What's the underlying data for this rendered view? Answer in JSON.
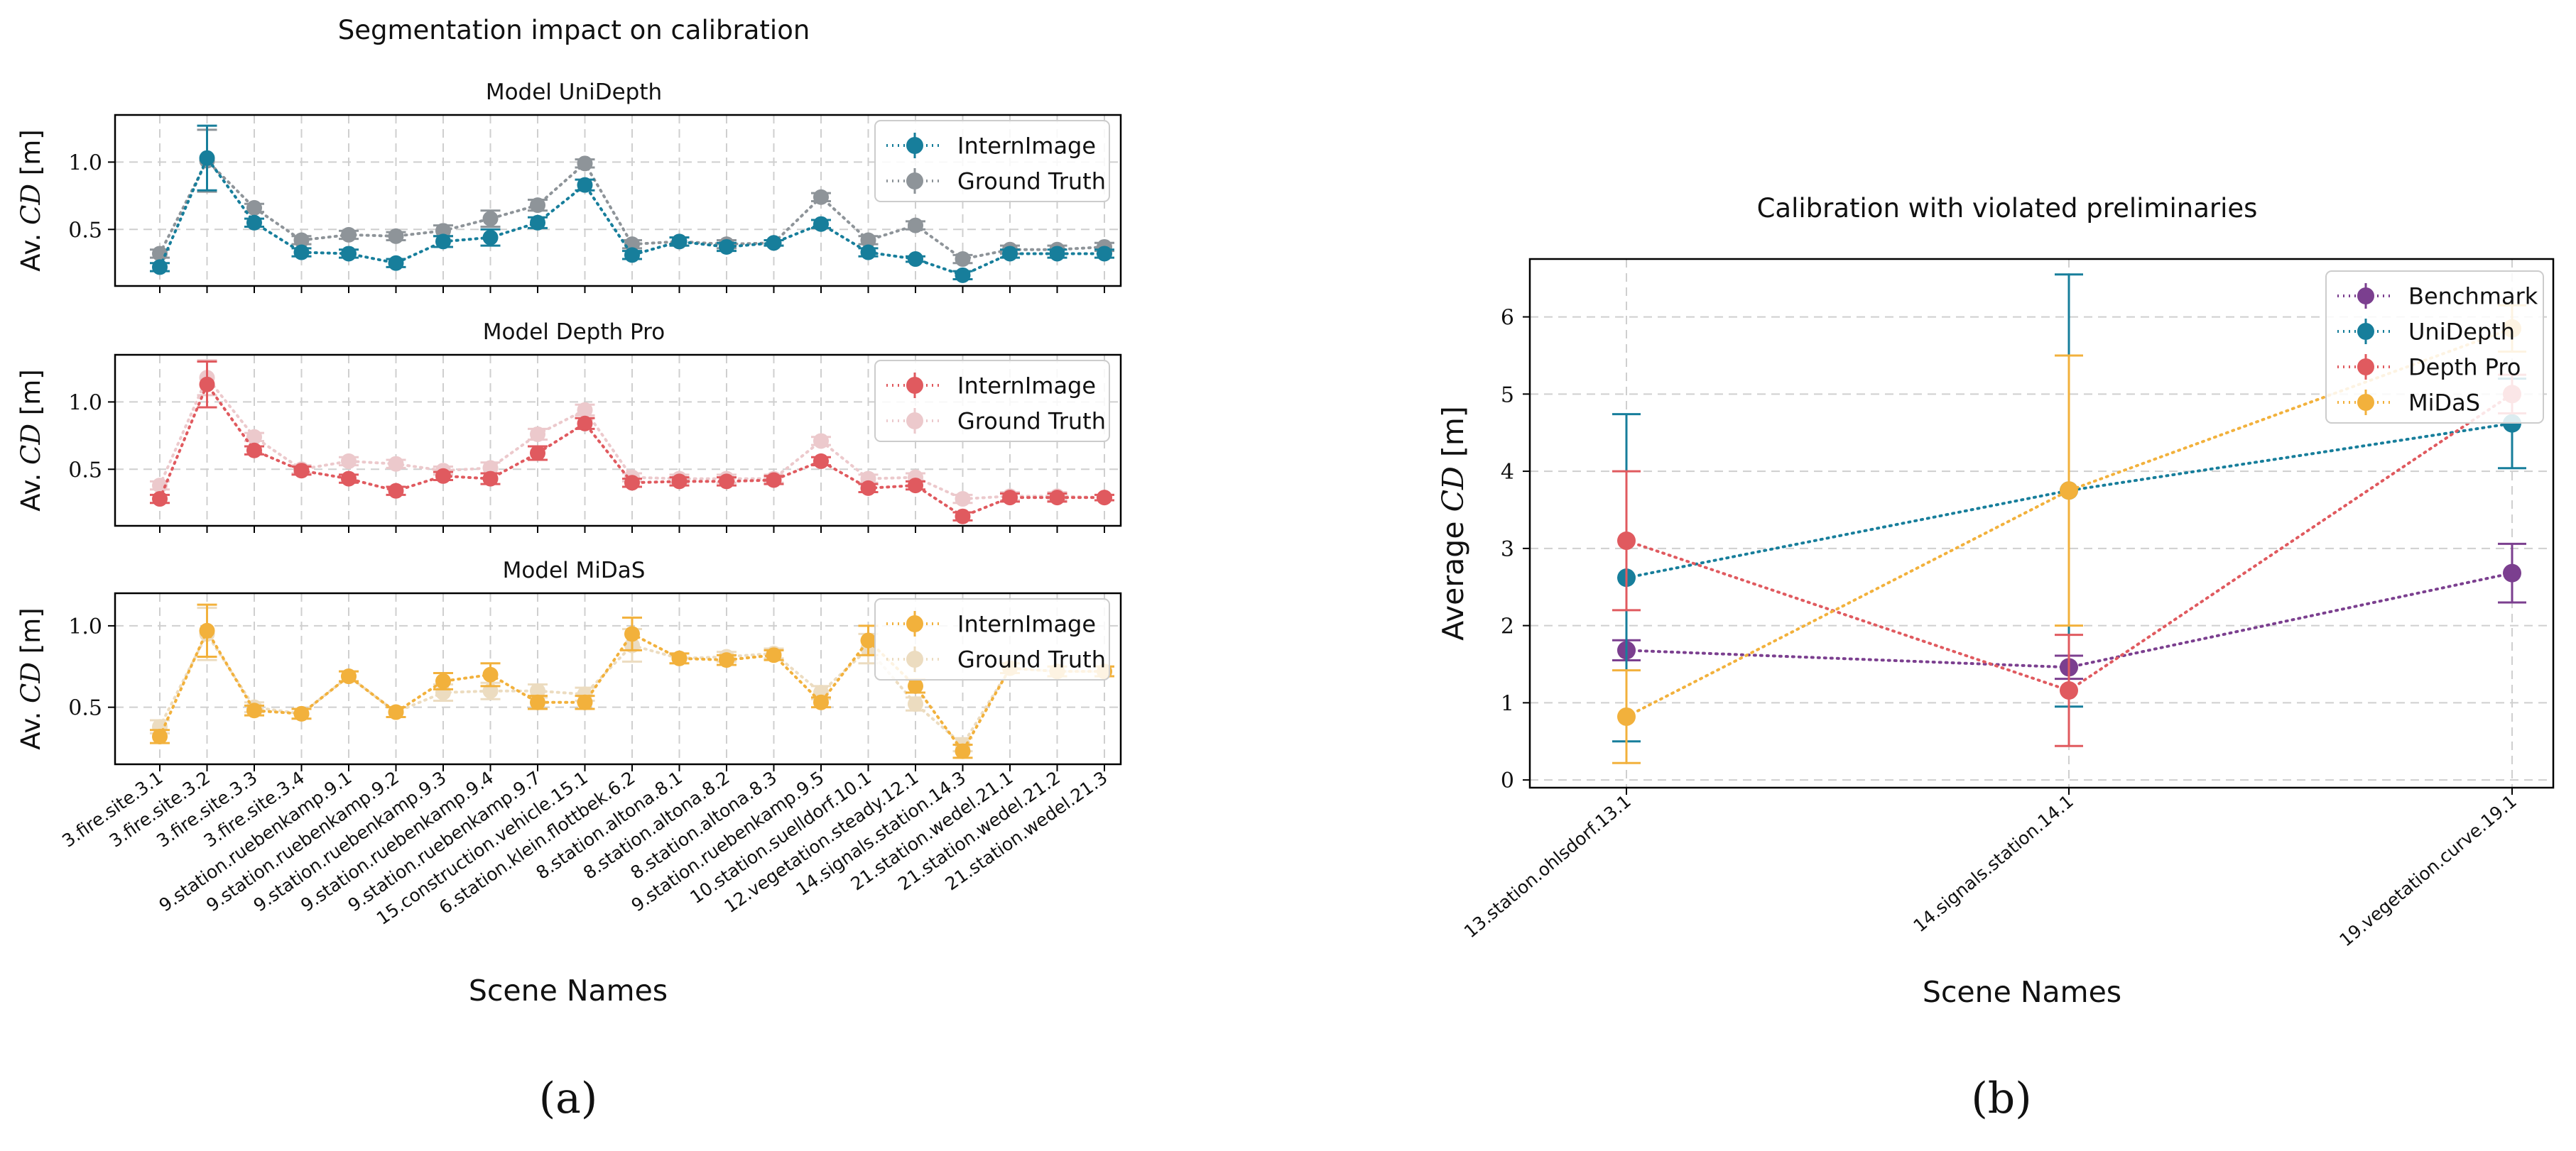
{
  "chart_data": [
    {
      "id": "a",
      "type": "line",
      "title": "Segmentation impact on calibration",
      "caption": "(a)",
      "xlabel": "Scene Names",
      "categories": [
        "3.fire.site.3.1",
        "3.fire.site.3.2",
        "3.fire.site.3.3",
        "3.fire.site.3.4",
        "9.station.ruebenkamp.9.1",
        "9.station.ruebenkamp.9.2",
        "9.station.ruebenkamp.9.3",
        "9.station.ruebenkamp.9.4",
        "9.station.ruebenkamp.9.7",
        "15.construction.vehicle.15.1",
        "6.station.klein.flottbek.6.2",
        "8.station.altona.8.1",
        "8.station.altona.8.2",
        "8.station.altona.8.3",
        "9.station.ruebenkamp.9.5",
        "10.station.suelldorf.10.1",
        "12.vegetation.steady.12.1",
        "14.signals.station.14.3",
        "21.station.wedel.21.1",
        "21.station.wedel.21.2",
        "21.station.wedel.21.3"
      ],
      "subplots": [
        {
          "title": "Model UniDepth",
          "ylabel_prefix": "Av. ",
          "ylabel_math": "CD",
          "ylabel_suffix": " [m]",
          "yticks": [
            "0.5",
            "1.0"
          ],
          "ylim": [
            0.08,
            1.35
          ],
          "series": [
            {
              "name": "InternImage",
              "color": "#177e9b",
              "values": [
                0.22,
                1.03,
                0.55,
                0.33,
                0.32,
                0.25,
                0.41,
                0.44,
                0.55,
                0.83,
                0.31,
                0.41,
                0.37,
                0.4,
                0.54,
                0.33,
                0.28,
                0.16,
                0.32,
                0.32,
                0.32
              ],
              "errors": [
                0.03,
                0.24,
                0.03,
                0.03,
                0.03,
                0.03,
                0.04,
                0.06,
                0.04,
                0.04,
                0.03,
                0.03,
                0.03,
                0.02,
                0.03,
                0.03,
                0.02,
                0.03,
                0.03,
                0.03,
                0.03
              ]
            },
            {
              "name": "Ground Truth",
              "color": "#8e9499",
              "values": [
                0.32,
                1.01,
                0.66,
                0.42,
                0.46,
                0.45,
                0.49,
                0.58,
                0.68,
                0.99,
                0.39,
                0.41,
                0.39,
                0.4,
                0.74,
                0.42,
                0.53,
                0.28,
                0.35,
                0.35,
                0.37
              ],
              "errors": [
                0.03,
                0.23,
                0.03,
                0.03,
                0.03,
                0.03,
                0.04,
                0.06,
                0.04,
                0.03,
                0.03,
                0.03,
                0.03,
                0.02,
                0.03,
                0.03,
                0.03,
                0.03,
                0.03,
                0.03,
                0.03
              ]
            }
          ]
        },
        {
          "title": "Model Depth Pro",
          "ylabel_prefix": "Av. ",
          "ylabel_math": "CD",
          "ylabel_suffix": " [m]",
          "yticks": [
            "0.5",
            "1.0"
          ],
          "ylim": [
            0.08,
            1.35
          ],
          "series": [
            {
              "name": "InternImage",
              "color": "#e05a5f",
              "values": [
                0.28,
                1.13,
                0.64,
                0.49,
                0.43,
                0.34,
                0.45,
                0.43,
                0.62,
                0.84,
                0.4,
                0.41,
                0.41,
                0.42,
                0.56,
                0.36,
                0.38,
                0.15,
                0.29,
                0.29,
                0.29
              ],
              "errors": [
                0.03,
                0.17,
                0.03,
                0.03,
                0.03,
                0.03,
                0.03,
                0.04,
                0.05,
                0.04,
                0.03,
                0.03,
                0.03,
                0.03,
                0.03,
                0.03,
                0.03,
                0.03,
                0.03,
                0.03,
                0.02
              ]
            },
            {
              "name": "Ground Truth",
              "color": "#ecc9cc",
              "values": [
                0.38,
                1.18,
                0.74,
                0.5,
                0.56,
                0.54,
                0.49,
                0.51,
                0.76,
                0.94,
                0.44,
                0.43,
                0.43,
                0.43,
                0.71,
                0.43,
                0.44,
                0.28,
                0.3,
                0.3,
                0.29
              ],
              "errors": [
                0.03,
                0.13,
                0.03,
                0.03,
                0.03,
                0.03,
                0.03,
                0.04,
                0.04,
                0.04,
                0.03,
                0.03,
                0.03,
                0.03,
                0.03,
                0.03,
                0.03,
                0.03,
                0.03,
                0.03,
                0.02
              ]
            }
          ]
        },
        {
          "title": "Model MiDaS",
          "ylabel_prefix": "Av. ",
          "ylabel_math": "CD",
          "ylabel_suffix": " [m]",
          "yticks": [
            "0.5",
            "1.0"
          ],
          "ylim": [
            0.15,
            1.2
          ],
          "series": [
            {
              "name": "InternImage",
              "color": "#f2b13c",
              "values": [
                0.32,
                0.97,
                0.48,
                0.46,
                0.69,
                0.47,
                0.66,
                0.7,
                0.53,
                0.53,
                0.95,
                0.8,
                0.79,
                0.82,
                0.53,
                0.91,
                0.63,
                0.23,
                0.74,
                0.72,
                0.72
              ],
              "errors": [
                0.04,
                0.16,
                0.03,
                0.03,
                0.03,
                0.03,
                0.05,
                0.07,
                0.04,
                0.04,
                0.1,
                0.03,
                0.03,
                0.03,
                0.03,
                0.09,
                0.04,
                0.04,
                0.03,
                0.03,
                0.03
              ]
            },
            {
              "name": "Ground Truth",
              "color": "#ecdcc0",
              "values": [
                0.38,
                0.95,
                0.5,
                0.46,
                0.69,
                0.47,
                0.59,
                0.6,
                0.6,
                0.58,
                0.88,
                0.8,
                0.81,
                0.83,
                0.59,
                0.86,
                0.52,
                0.27,
                0.74,
                0.72,
                0.72
              ],
              "errors": [
                0.04,
                0.16,
                0.03,
                0.03,
                0.03,
                0.03,
                0.05,
                0.05,
                0.04,
                0.04,
                0.1,
                0.03,
                0.03,
                0.03,
                0.04,
                0.09,
                0.04,
                0.04,
                0.03,
                0.03,
                0.03
              ]
            }
          ]
        }
      ]
    },
    {
      "id": "b",
      "type": "line",
      "title": "Calibration with violated preliminaries",
      "caption": "(b)",
      "xlabel": "Scene Names",
      "ylabel_prefix": "Average ",
      "ylabel_math": "CD",
      "ylabel_suffix": " [m]",
      "categories": [
        "13.station.ohlsdorf.13.1",
        "14.signals.station.14.1",
        "19.vegetation.curve.19.1"
      ],
      "ylim": [
        -0.1,
        6.75
      ],
      "yticks": [
        0,
        1,
        2,
        3,
        4,
        5,
        6
      ],
      "legend_position": "top-right",
      "series": [
        {
          "name": "Benchmark",
          "color": "#7b3f8f",
          "values": [
            1.68,
            1.46,
            2.68
          ],
          "errors": [
            0.13,
            0.15,
            0.38
          ]
        },
        {
          "name": "UniDepth",
          "color": "#177e9b",
          "values": [
            2.62,
            3.75,
            4.62
          ],
          "errors": [
            2.12,
            2.8,
            0.58
          ]
        },
        {
          "name": "Depth Pro",
          "color": "#e05a5f",
          "values": [
            3.1,
            1.16,
            5.0
          ],
          "errors": [
            0.9,
            0.72,
            0.25
          ]
        },
        {
          "name": "MiDaS",
          "color": "#f2b13c",
          "values": [
            0.82,
            3.75,
            5.85
          ],
          "errors": [
            0.6,
            1.75,
            0.3
          ]
        }
      ]
    }
  ]
}
